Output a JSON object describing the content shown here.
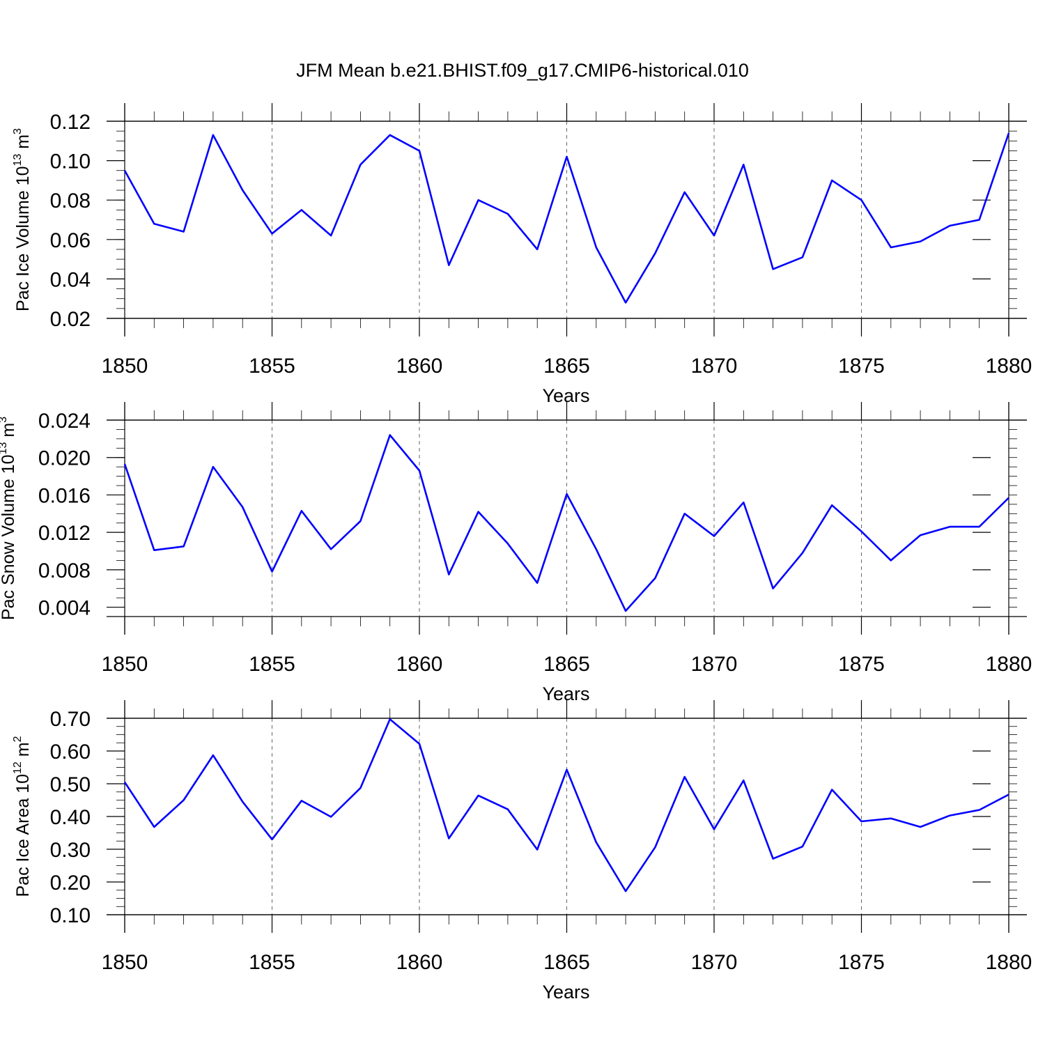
{
  "figure_title": "JFM Mean b.e21.BHIST.f09_g17.CMIP6-historical.010",
  "chart_data": [
    {
      "type": "line",
      "xlabel": "Years",
      "ylabel": {
        "prefix": "Pac Ice Volume 10",
        "exp": "13",
        "unit": " m",
        "unit_exp": "3"
      },
      "xlim": [
        1850,
        1880
      ],
      "ylim": [
        0.02,
        0.12
      ],
      "yticks": [
        "0.02",
        "0.04",
        "0.06",
        "0.08",
        "0.10",
        "0.12"
      ],
      "yminor_step": 0.005,
      "xticks": [
        "1850",
        "1855",
        "1860",
        "1865",
        "1870",
        "1875",
        "1880"
      ],
      "grid": "x-dashed",
      "x": [
        1850,
        1851,
        1852,
        1853,
        1854,
        1855,
        1856,
        1857,
        1858,
        1859,
        1860,
        1861,
        1862,
        1863,
        1864,
        1865,
        1866,
        1867,
        1868,
        1869,
        1870,
        1871,
        1872,
        1873,
        1874,
        1875,
        1876,
        1877,
        1878,
        1879,
        1880
      ],
      "series": [
        {
          "values": [
            0.095,
            0.068,
            0.064,
            0.113,
            0.085,
            0.063,
            0.075,
            0.062,
            0.098,
            0.113,
            0.105,
            0.047,
            0.08,
            0.073,
            0.055,
            0.102,
            0.056,
            0.028,
            0.053,
            0.084,
            0.062,
            0.098,
            0.045,
            0.051,
            0.09,
            0.08,
            0.056,
            0.059,
            0.067,
            0.07,
            0.114
          ],
          "color": "#0000ff"
        }
      ]
    },
    {
      "type": "line",
      "xlabel": "Years",
      "ylabel": {
        "prefix": "Pac Snow Volume 10",
        "exp": "13",
        "unit": " m",
        "unit_exp": "3"
      },
      "xlim": [
        1850,
        1880
      ],
      "ylim": [
        0.003,
        0.024
      ],
      "yticks": [
        "0.004",
        "0.008",
        "0.012",
        "0.016",
        "0.020",
        "0.024"
      ],
      "ytick_values": [
        0.004,
        0.008,
        0.012,
        0.016,
        0.02,
        0.024
      ],
      "yminor_step": 0.001,
      "xticks": [
        "1850",
        "1855",
        "1860",
        "1865",
        "1870",
        "1875",
        "1880"
      ],
      "grid": "x-dashed",
      "x": [
        1850,
        1851,
        1852,
        1853,
        1854,
        1855,
        1856,
        1857,
        1858,
        1859,
        1860,
        1861,
        1862,
        1863,
        1864,
        1865,
        1866,
        1867,
        1868,
        1869,
        1870,
        1871,
        1872,
        1873,
        1874,
        1875,
        1876,
        1877,
        1878,
        1879,
        1880
      ],
      "series": [
        {
          "values": [
            0.0193,
            0.0101,
            0.0105,
            0.019,
            0.0147,
            0.0078,
            0.0143,
            0.0102,
            0.0132,
            0.0224,
            0.0186,
            0.0075,
            0.0142,
            0.0108,
            0.0066,
            0.0161,
            0.0102,
            0.0036,
            0.0071,
            0.014,
            0.0116,
            0.0152,
            0.006,
            0.0098,
            0.0149,
            0.0121,
            0.009,
            0.0117,
            0.0126,
            0.0126,
            0.0157
          ],
          "color": "#0000ff"
        }
      ]
    },
    {
      "type": "line",
      "xlabel": "Years",
      "ylabel": {
        "prefix": "Pac Ice Area 10",
        "exp": "12",
        "unit": " m",
        "unit_exp": "2"
      },
      "xlim": [
        1850,
        1880
      ],
      "ylim": [
        0.1,
        0.7
      ],
      "yticks": [
        "0.10",
        "0.20",
        "0.30",
        "0.40",
        "0.50",
        "0.60",
        "0.70"
      ],
      "yminor_step": 0.025,
      "xticks": [
        "1850",
        "1855",
        "1860",
        "1865",
        "1870",
        "1875",
        "1880"
      ],
      "grid": "x-dashed",
      "x": [
        1850,
        1851,
        1852,
        1853,
        1854,
        1855,
        1856,
        1857,
        1858,
        1859,
        1860,
        1861,
        1862,
        1863,
        1864,
        1865,
        1866,
        1867,
        1868,
        1869,
        1870,
        1871,
        1872,
        1873,
        1874,
        1875,
        1876,
        1877,
        1878,
        1879,
        1880
      ],
      "series": [
        {
          "values": [
            0.505,
            0.368,
            0.45,
            0.587,
            0.445,
            0.33,
            0.448,
            0.399,
            0.487,
            0.697,
            0.622,
            0.333,
            0.464,
            0.422,
            0.299,
            0.543,
            0.321,
            0.172,
            0.306,
            0.521,
            0.361,
            0.51,
            0.271,
            0.308,
            0.482,
            0.385,
            0.394,
            0.368,
            0.403,
            0.42,
            0.467
          ],
          "color": "#0000ff"
        }
      ]
    }
  ]
}
